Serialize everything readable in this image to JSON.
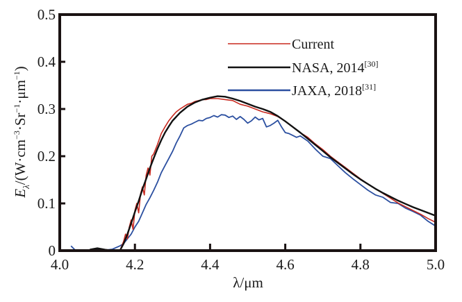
{
  "chart_data": {
    "type": "line",
    "title": "",
    "xlabel": "λ/μm",
    "ylabel": "E_λ/(W·cm⁻³·Sr⁻¹·μm⁻¹)",
    "ylabel_parts": {
      "symbol": "E",
      "subscript": "λ",
      "unit": "/(W·cm",
      "e1": "−3",
      "u2": "·Sr",
      "e2": "−1",
      "u3": "·μm",
      "e3": "−1",
      "close": ")"
    },
    "xlim": [
      4.0,
      5.0
    ],
    "ylim": [
      0,
      0.5
    ],
    "xticks": [
      4.0,
      4.2,
      4.4,
      4.6,
      4.8,
      5.0
    ],
    "xtick_labels": [
      "4.0",
      "4.2",
      "4.4",
      "4.6",
      "4.8",
      "5.0"
    ],
    "yticks": [
      0,
      0.1,
      0.2,
      0.3,
      0.4,
      0.5
    ],
    "ytick_labels": [
      "0",
      "0.1",
      "0.2",
      "0.3",
      "0.4",
      "0.5"
    ],
    "grid": false,
    "legend_position": "top-right",
    "series": [
      {
        "name": "Current",
        "ref": "",
        "color": "#c8281e",
        "x": [
          4.16,
          4.17,
          4.175,
          4.18,
          4.185,
          4.19,
          4.195,
          4.2,
          4.205,
          4.21,
          4.215,
          4.22,
          4.225,
          4.23,
          4.235,
          4.24,
          4.245,
          4.25,
          4.26,
          4.27,
          4.28,
          4.29,
          4.3,
          4.31,
          4.32,
          4.33,
          4.34,
          4.35,
          4.36,
          4.37,
          4.38,
          4.39,
          4.4,
          4.42,
          4.44,
          4.46,
          4.48,
          4.5,
          4.52,
          4.54,
          4.56,
          4.58,
          4.6,
          4.62,
          4.64,
          4.66,
          4.68,
          4.7,
          4.72,
          4.74,
          4.76,
          4.78,
          4.8,
          4.82,
          4.84,
          4.86,
          4.88,
          4.9,
          4.92,
          4.94,
          4.96,
          4.98,
          5.0
        ],
        "y": [
          0.0,
          0.02,
          0.035,
          0.025,
          0.05,
          0.065,
          0.045,
          0.085,
          0.1,
          0.08,
          0.12,
          0.135,
          0.118,
          0.16,
          0.175,
          0.16,
          0.2,
          0.205,
          0.225,
          0.248,
          0.262,
          0.275,
          0.285,
          0.294,
          0.3,
          0.305,
          0.31,
          0.312,
          0.316,
          0.318,
          0.32,
          0.32,
          0.322,
          0.322,
          0.32,
          0.318,
          0.31,
          0.306,
          0.3,
          0.294,
          0.29,
          0.284,
          0.274,
          0.262,
          0.25,
          0.24,
          0.226,
          0.214,
          0.2,
          0.188,
          0.176,
          0.164,
          0.152,
          0.141,
          0.131,
          0.121,
          0.111,
          0.101,
          0.093,
          0.085,
          0.077,
          0.068,
          0.06
        ]
      },
      {
        "name": "NASA, 2014",
        "ref": "[30]",
        "color": "#111111",
        "x": [
          4.08,
          4.1,
          4.12,
          4.14,
          4.16,
          4.17,
          4.18,
          4.19,
          4.2,
          4.21,
          4.22,
          4.23,
          4.24,
          4.25,
          4.26,
          4.27,
          4.28,
          4.29,
          4.3,
          4.32,
          4.34,
          4.36,
          4.38,
          4.4,
          4.42,
          4.44,
          4.46,
          4.48,
          4.5,
          4.52,
          4.54,
          4.56,
          4.58,
          4.6,
          4.62,
          4.64,
          4.66,
          4.68,
          4.7,
          4.72,
          4.74,
          4.76,
          4.78,
          4.8,
          4.82,
          4.84,
          4.86,
          4.88,
          4.9,
          4.92,
          4.94,
          4.96,
          4.98,
          5.0
        ],
        "y": [
          0.002,
          0.005,
          0.002,
          0.0,
          0.0,
          0.015,
          0.035,
          0.058,
          0.082,
          0.105,
          0.13,
          0.152,
          0.175,
          0.196,
          0.216,
          0.234,
          0.25,
          0.263,
          0.275,
          0.292,
          0.305,
          0.314,
          0.32,
          0.324,
          0.327,
          0.326,
          0.322,
          0.317,
          0.311,
          0.305,
          0.3,
          0.294,
          0.285,
          0.274,
          0.262,
          0.25,
          0.237,
          0.224,
          0.211,
          0.198,
          0.186,
          0.174,
          0.162,
          0.151,
          0.141,
          0.131,
          0.122,
          0.114,
          0.106,
          0.099,
          0.092,
          0.086,
          0.08,
          0.074
        ]
      },
      {
        "name": "JAXA, 2018",
        "ref": "[31]",
        "color": "#2b4fa0",
        "x": [
          4.03,
          4.04,
          4.06,
          4.08,
          4.1,
          4.12,
          4.14,
          4.16,
          4.17,
          4.18,
          4.19,
          4.2,
          4.21,
          4.22,
          4.23,
          4.24,
          4.25,
          4.26,
          4.27,
          4.28,
          4.29,
          4.3,
          4.31,
          4.32,
          4.33,
          4.34,
          4.35,
          4.36,
          4.37,
          4.38,
          4.39,
          4.4,
          4.41,
          4.42,
          4.43,
          4.44,
          4.45,
          4.46,
          4.47,
          4.48,
          4.49,
          4.5,
          4.51,
          4.52,
          4.53,
          4.54,
          4.55,
          4.56,
          4.57,
          4.58,
          4.59,
          4.6,
          4.61,
          4.62,
          4.63,
          4.64,
          4.66,
          4.68,
          4.7,
          4.72,
          4.74,
          4.76,
          4.78,
          4.8,
          4.82,
          4.84,
          4.86,
          4.88,
          4.9,
          4.92,
          4.94,
          4.96,
          4.98,
          5.0
        ],
        "y": [
          0.01,
          0.002,
          0.0,
          0.0,
          0.003,
          0.001,
          0.003,
          0.01,
          0.015,
          0.025,
          0.035,
          0.05,
          0.062,
          0.08,
          0.098,
          0.112,
          0.128,
          0.145,
          0.165,
          0.18,
          0.195,
          0.21,
          0.228,
          0.243,
          0.26,
          0.265,
          0.268,
          0.272,
          0.276,
          0.275,
          0.28,
          0.282,
          0.286,
          0.283,
          0.288,
          0.287,
          0.282,
          0.285,
          0.278,
          0.284,
          0.278,
          0.27,
          0.275,
          0.283,
          0.277,
          0.28,
          0.262,
          0.265,
          0.27,
          0.276,
          0.262,
          0.25,
          0.248,
          0.244,
          0.24,
          0.243,
          0.232,
          0.215,
          0.2,
          0.195,
          0.18,
          0.165,
          0.152,
          0.14,
          0.128,
          0.118,
          0.113,
          0.102,
          0.1,
          0.09,
          0.083,
          0.075,
          0.062,
          0.052
        ]
      }
    ]
  }
}
